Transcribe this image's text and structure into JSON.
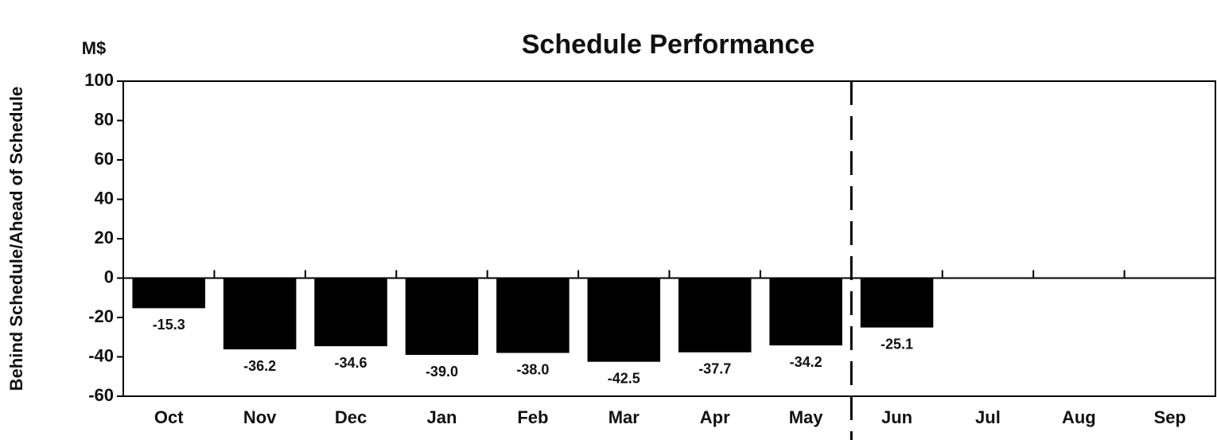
{
  "chart_data": {
    "type": "bar",
    "title": "Schedule Performance",
    "unit_label": "M$",
    "y_label": "Behind Schedule/Ahead of Schedule",
    "categories": [
      "Oct",
      "Nov",
      "Dec",
      "Jan",
      "Feb",
      "Mar",
      "Apr",
      "May",
      "Jun",
      "Jul",
      "Aug",
      "Sep"
    ],
    "values": [
      -15.3,
      -36.2,
      -34.6,
      -39,
      -38,
      -42.5,
      -37.7,
      -34.2,
      -25.1,
      null,
      null,
      null
    ],
    "value_labels": [
      "-15.3",
      "-36.2",
      "-34.6",
      "-39.0",
      "-38.0",
      "-42.5",
      "-37.7",
      "-34.2",
      "-25.1",
      null,
      null,
      null
    ],
    "color": "#000000",
    "ylim": [
      -60,
      100
    ],
    "yticks": [
      -60,
      -40,
      -20,
      0,
      20,
      40,
      60,
      80,
      100
    ],
    "grid": false
  }
}
